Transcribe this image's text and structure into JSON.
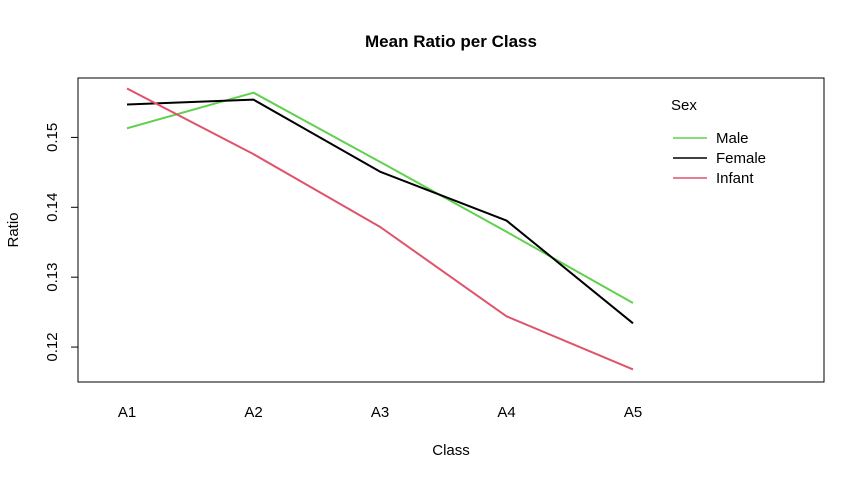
{
  "chart_data": {
    "type": "line",
    "title": "Mean Ratio per Class",
    "xlabel": "Class",
    "ylabel": "Ratio",
    "categories": [
      "A1",
      "A2",
      "A3",
      "A4",
      "A5"
    ],
    "yticks": [
      0.12,
      0.13,
      0.14,
      0.15
    ],
    "ytick_labels": [
      "0.12",
      "0.13",
      "0.14",
      "0.15"
    ],
    "ylim": [
      0.115,
      0.1585
    ],
    "grid": false,
    "legend": {
      "title": "Sex",
      "position": "top-right"
    },
    "series": [
      {
        "name": "Male",
        "color": "#61D04F",
        "values": [
          0.1513,
          0.1564,
          0.1465,
          0.1365,
          0.1263
        ]
      },
      {
        "name": "Female",
        "color": "#000000",
        "values": [
          0.1547,
          0.1554,
          0.1451,
          0.1381,
          0.1234
        ]
      },
      {
        "name": "Infant",
        "color": "#DF536B",
        "values": [
          0.157,
          0.1476,
          0.1372,
          0.1244,
          0.1168
        ]
      }
    ]
  }
}
